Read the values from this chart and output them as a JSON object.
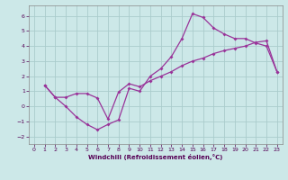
{
  "xlabel": "Windchill (Refroidissement éolien,°C)",
  "bg_color": "#cce8e8",
  "line_color": "#993399",
  "grid_color": "#aacccc",
  "xlim": [
    -0.5,
    23.5
  ],
  "ylim": [
    -2.5,
    6.7
  ],
  "xticks": [
    0,
    1,
    2,
    3,
    4,
    5,
    6,
    7,
    8,
    9,
    10,
    11,
    12,
    13,
    14,
    15,
    16,
    17,
    18,
    19,
    20,
    21,
    22,
    23
  ],
  "yticks": [
    -2,
    -1,
    0,
    1,
    2,
    3,
    4,
    5,
    6
  ],
  "line1_x": [
    1,
    2,
    3,
    4,
    5,
    6,
    7,
    8,
    9,
    10,
    11,
    12,
    13,
    14,
    15,
    16,
    17,
    18,
    19,
    20,
    21,
    22,
    23
  ],
  "line1_y": [
    1.4,
    0.6,
    0.0,
    -0.7,
    -1.2,
    -1.55,
    -1.2,
    -0.9,
    1.2,
    1.0,
    2.0,
    2.5,
    3.3,
    4.5,
    6.15,
    5.9,
    5.2,
    4.8,
    4.5,
    4.5,
    4.2,
    4.0,
    2.3
  ],
  "line2_x": [
    1,
    2,
    3,
    4,
    5,
    6,
    7,
    8,
    9,
    10,
    11,
    12,
    13,
    14,
    15,
    16,
    17,
    18,
    19,
    20,
    21,
    22,
    23
  ],
  "line2_y": [
    1.4,
    0.6,
    0.6,
    0.85,
    0.85,
    0.55,
    -0.85,
    0.95,
    1.5,
    1.3,
    1.7,
    2.0,
    2.3,
    2.7,
    3.0,
    3.2,
    3.5,
    3.7,
    3.85,
    4.0,
    4.25,
    4.35,
    2.3
  ]
}
